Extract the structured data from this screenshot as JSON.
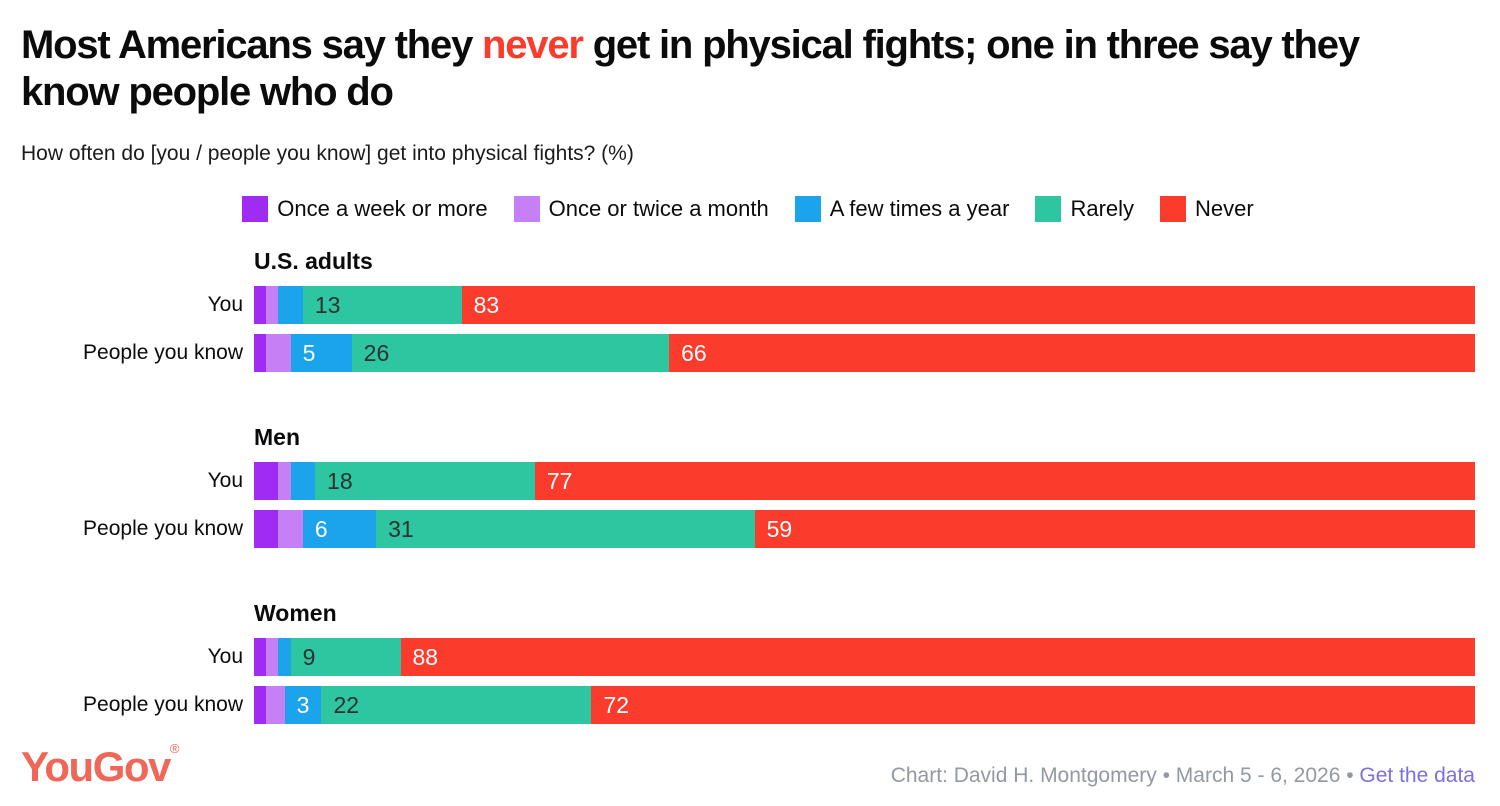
{
  "page": {
    "title_prefix": "Most Americans say they ",
    "title_highlight": "never",
    "title_suffix": " get in physical fights; one in three say they know people who do",
    "subtitle": "How often do [you / people you know] get into physical fights? (%)"
  },
  "footer": {
    "logo_text": "YouGov",
    "registered_mark": "®",
    "credit_text": "Chart: David H. Montgomery • March 5 - 6, 2026 • ",
    "link_text": "Get the data"
  },
  "colors": {
    "highlight_red": "#fb3b2b",
    "logo_coral": "#ee6757",
    "credit_gray": "#9199a3",
    "link_purple": "#7a70e2"
  },
  "chart_data": {
    "type": "bar",
    "stacked": true,
    "orientation": "horizontal",
    "x_range": [
      0,
      100
    ],
    "legend_position": "top-center",
    "series_labels": [
      "Once a week or more",
      "Once or twice a month",
      "A few times a year",
      "Rarely",
      "Never"
    ],
    "series_colors": [
      "#a02bf2",
      "#c77ff5",
      "#1ba3ec",
      "#2ec6a0",
      "#fb3b2b"
    ],
    "value_label_colors": [
      "#ffffff",
      "#ffffff",
      "#ffffff",
      "#2e3033",
      "#ffffff"
    ],
    "groups": [
      {
        "name": "U.S. adults",
        "rows": [
          {
            "label": "You",
            "values": [
              1,
              1,
              2,
              13,
              83
            ],
            "value_labels": [
              "",
              "",
              "",
              "13",
              "83"
            ]
          },
          {
            "label": "People you know",
            "values": [
              1,
              2,
              5,
              26,
              66
            ],
            "value_labels": [
              "",
              "",
              "5",
              "26",
              "66"
            ]
          }
        ]
      },
      {
        "name": "Men",
        "rows": [
          {
            "label": "You",
            "values": [
              2,
              1,
              2,
              18,
              77
            ],
            "value_labels": [
              "",
              "",
              "",
              "18",
              "77"
            ]
          },
          {
            "label": "People you know",
            "values": [
              2,
              2,
              6,
              31,
              59
            ],
            "value_labels": [
              "",
              "",
              "6",
              "31",
              "59"
            ]
          }
        ]
      },
      {
        "name": "Women",
        "rows": [
          {
            "label": "You",
            "values": [
              1,
              1,
              1,
              9,
              88
            ],
            "value_labels": [
              "",
              "",
              "",
              "9",
              "88"
            ]
          },
          {
            "label": "People you know",
            "values": [
              1,
              1.5,
              3,
              22,
              72
            ],
            "value_labels": [
              "",
              "",
              "3",
              "22",
              "72"
            ]
          }
        ]
      }
    ]
  }
}
